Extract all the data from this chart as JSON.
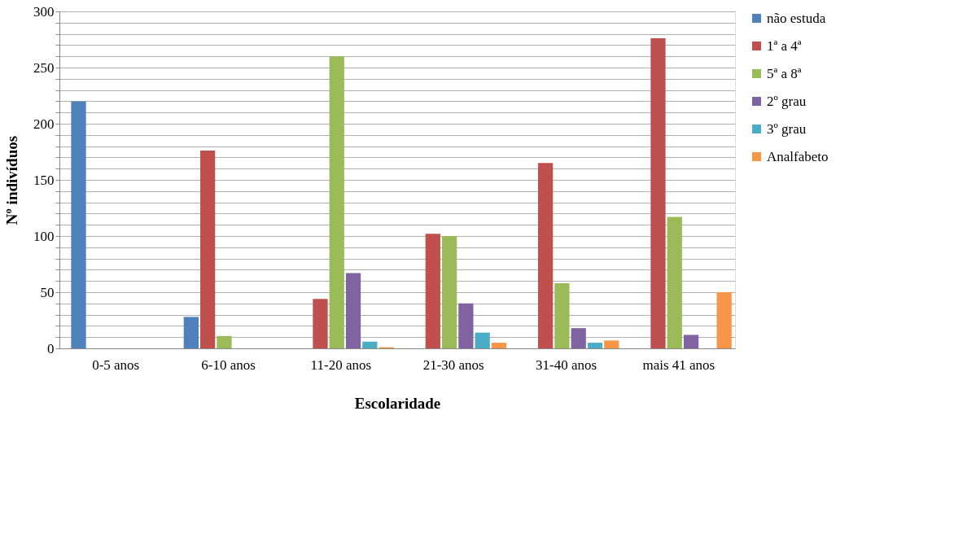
{
  "chart_data": {
    "type": "bar",
    "xlabel": "Escolaridade",
    "ylabel": "Nº indivíduos",
    "categories": [
      "0-5 anos",
      "6-10 anos",
      "11-20 anos",
      "21-30 anos",
      "31-40 anos",
      "mais 41 anos"
    ],
    "series": [
      {
        "name": "não estuda",
        "color": "#4f81bd",
        "values": [
          220,
          28,
          null,
          null,
          null,
          null
        ]
      },
      {
        "name": "1ª a 4ª",
        "color": "#c0504d",
        "values": [
          null,
          176,
          44,
          102,
          165,
          276
        ]
      },
      {
        "name": "5ª a 8ª",
        "color": "#9bbb59",
        "values": [
          null,
          11,
          260,
          100,
          58,
          117
        ]
      },
      {
        "name": "2º grau",
        "color": "#8064a2",
        "values": [
          null,
          null,
          67,
          40,
          18,
          12
        ]
      },
      {
        "name": "3º grau",
        "color": "#4bacc6",
        "values": [
          null,
          null,
          6,
          14,
          5,
          null
        ]
      },
      {
        "name": "Analfabeto",
        "color": "#f79646",
        "values": [
          null,
          null,
          1,
          5,
          7,
          50
        ]
      }
    ],
    "ylim": [
      0,
      300
    ],
    "yticks": [
      0,
      {
        "value": 10,
        "label": null
      },
      {
        "value": 20,
        "label": null
      },
      {
        "value": 30,
        "label": null
      },
      {
        "value": 40,
        "label": null
      },
      50,
      {
        "value": 60,
        "label": null
      },
      {
        "value": 70,
        "label": null
      },
      {
        "value": 80,
        "label": null
      },
      {
        "value": 90,
        "label": null
      },
      100,
      {
        "value": 110,
        "label": null
      },
      {
        "value": 120,
        "label": null
      },
      {
        "value": 130,
        "label": null
      },
      {
        "value": 140,
        "label": null
      },
      150,
      {
        "value": 160,
        "label": null
      },
      {
        "value": 170,
        "label": null
      },
      {
        "value": 180,
        "label": null
      },
      {
        "value": 190,
        "label": null
      },
      200,
      {
        "value": 210,
        "label": null
      },
      {
        "value": 220,
        "label": null
      },
      {
        "value": 230,
        "label": null
      },
      {
        "value": 240,
        "label": null
      },
      250,
      {
        "value": 260,
        "label": null
      },
      {
        "value": 270,
        "label": null
      },
      {
        "value": 280,
        "label": null
      },
      {
        "value": 290,
        "label": null
      },
      300
    ],
    "grid": true,
    "legend": "right"
  }
}
